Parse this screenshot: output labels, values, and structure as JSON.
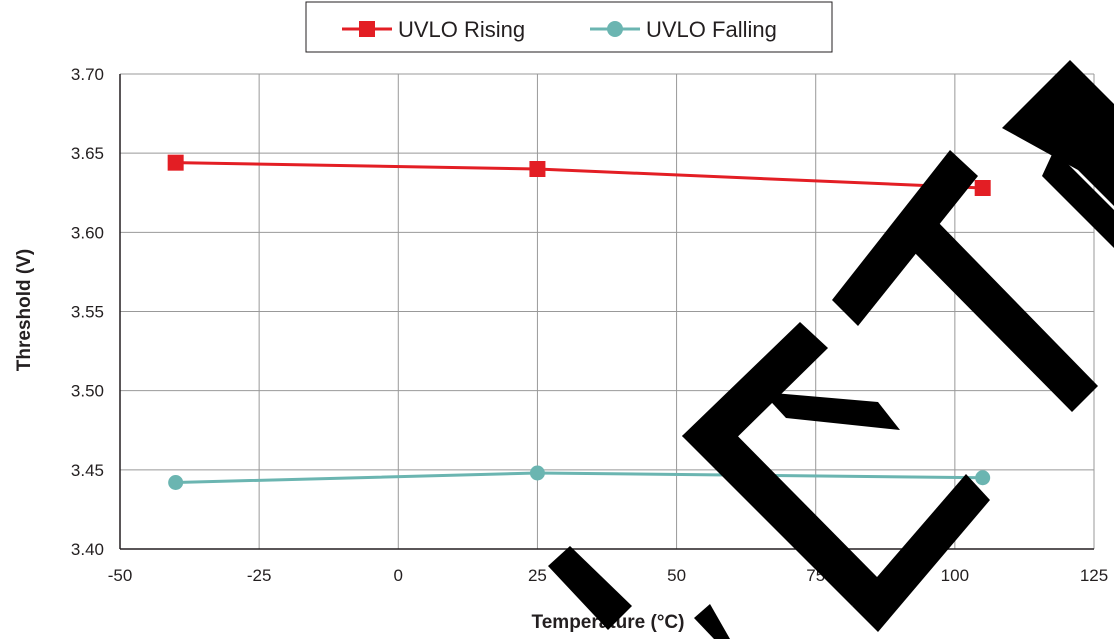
{
  "chart_data": {
    "type": "line",
    "xlabel": "Temperature (°C)",
    "ylabel": "Threshold (V)",
    "xlim": [
      -50,
      125
    ],
    "ylim": [
      3.4,
      3.7
    ],
    "x_ticks": [
      "-50",
      "-25",
      "0",
      "25",
      "50",
      "75",
      "100",
      "125"
    ],
    "y_ticks": [
      "3.40",
      "3.45",
      "3.50",
      "3.55",
      "3.60",
      "3.65",
      "3.70"
    ],
    "grid": true,
    "legend_position": "top-center",
    "series": [
      {
        "name": "UVLO Rising",
        "color": "#e31e24",
        "marker": "square",
        "x": [
          -40,
          25,
          105
        ],
        "y": [
          3.644,
          3.64,
          3.628
        ]
      },
      {
        "name": "UVLO Falling",
        "color": "#6bb5b1",
        "marker": "circle",
        "x": [
          -40,
          25,
          105
        ],
        "y": [
          3.442,
          3.448,
          3.445
        ]
      }
    ]
  },
  "watermark": {
    "text": "DELETED",
    "color": "#000000"
  }
}
